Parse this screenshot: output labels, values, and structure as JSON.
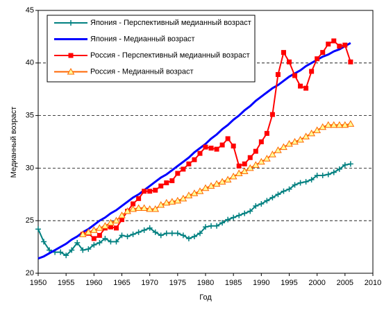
{
  "chart_data": {
    "type": "line",
    "x_label": "Год",
    "y_label": "Медианный возраст",
    "xlim": [
      1950,
      2010
    ],
    "xticks": [
      1950,
      1955,
      1960,
      1965,
      1970,
      1975,
      1980,
      1985,
      1990,
      1995,
      2000,
      2005,
      2010
    ],
    "ylim": [
      20,
      45
    ],
    "yticks": [
      20,
      25,
      30,
      35,
      40,
      45
    ],
    "grid": true,
    "legend": "top-left",
    "x": [
      1950,
      1951,
      1952,
      1953,
      1954,
      1955,
      1956,
      1957,
      1958,
      1959,
      1960,
      1961,
      1962,
      1963,
      1964,
      1965,
      1966,
      1967,
      1968,
      1969,
      1970,
      1971,
      1972,
      1973,
      1974,
      1975,
      1976,
      1977,
      1978,
      1979,
      1980,
      1981,
      1982,
      1983,
      1984,
      1985,
      1986,
      1987,
      1988,
      1989,
      1990,
      1991,
      1992,
      1993,
      1994,
      1995,
      1996,
      1997,
      1998,
      1999,
      2000,
      2001,
      2002,
      2003,
      2004,
      2005,
      2006
    ],
    "series": [
      {
        "name": "Япония - Перспективный медианный возраст",
        "color": "#008080",
        "marker": "plus",
        "values": [
          24.2,
          23.0,
          22.2,
          22.0,
          22.0,
          21.7,
          22.2,
          22.9,
          22.2,
          22.3,
          22.7,
          22.9,
          23.3,
          23.0,
          23.0,
          23.6,
          23.5,
          23.7,
          23.9,
          24.1,
          24.3,
          23.9,
          23.6,
          23.8,
          23.8,
          23.8,
          23.6,
          23.3,
          23.5,
          23.8,
          24.4,
          24.5,
          24.5,
          24.8,
          25.1,
          25.3,
          25.5,
          25.7,
          25.9,
          26.4,
          26.6,
          26.9,
          27.2,
          27.5,
          27.8,
          28.0,
          28.4,
          28.6,
          28.7,
          28.9,
          29.3,
          29.3,
          29.4,
          29.6,
          29.9,
          30.3,
          30.4
        ]
      },
      {
        "name": "Япония - Медианный возраст",
        "color": "#0000ff",
        "marker": "none",
        "values": [
          21.4,
          21.6,
          21.9,
          22.2,
          22.5,
          22.8,
          23.2,
          23.5,
          23.9,
          24.2,
          24.6,
          25.0,
          25.3,
          25.7,
          26.0,
          26.4,
          26.8,
          27.2,
          27.5,
          27.9,
          28.3,
          28.7,
          29.1,
          29.4,
          29.8,
          30.2,
          30.6,
          31.0,
          31.5,
          31.9,
          32.3,
          32.8,
          33.2,
          33.7,
          34.1,
          34.6,
          35.0,
          35.5,
          35.9,
          36.4,
          36.8,
          37.2,
          37.6,
          37.9,
          38.3,
          38.7,
          39.0,
          39.3,
          39.7,
          40.0,
          40.3,
          40.6,
          40.8,
          41.1,
          41.3,
          41.6,
          41.9
        ]
      },
      {
        "name": "Россия - Перспективный медианный возраст",
        "color": "#ff0000",
        "marker": "square",
        "values": [
          null,
          null,
          null,
          null,
          null,
          null,
          null,
          null,
          23.7,
          23.8,
          23.3,
          23.6,
          24.3,
          24.4,
          24.3,
          25.1,
          25.9,
          26.6,
          27.1,
          27.8,
          27.8,
          27.9,
          28.3,
          28.6,
          28.8,
          29.5,
          29.9,
          30.4,
          30.8,
          31.4,
          32.0,
          31.9,
          31.8,
          32.2,
          32.8,
          32.1,
          30.2,
          30.4,
          31.0,
          31.6,
          32.5,
          33.3,
          35.1,
          38.9,
          41.0,
          40.1,
          38.8,
          37.8,
          37.6,
          39.2,
          40.4,
          41.0,
          41.8,
          42.1,
          41.6,
          41.7,
          40.1
        ]
      },
      {
        "name": "Россия - Медианный возраст",
        "color": "#ff6600",
        "marker": "triangle",
        "values": [
          null,
          null,
          null,
          null,
          null,
          null,
          null,
          null,
          23.7,
          23.9,
          24.1,
          24.3,
          24.5,
          24.8,
          25.0,
          25.5,
          25.9,
          26.1,
          26.2,
          26.2,
          26.1,
          26.1,
          26.5,
          26.7,
          26.8,
          26.9,
          27.1,
          27.4,
          27.6,
          27.8,
          28.1,
          28.3,
          28.5,
          28.7,
          28.9,
          29.2,
          29.5,
          29.7,
          30.0,
          30.3,
          30.6,
          30.9,
          31.3,
          31.7,
          32.0,
          32.3,
          32.5,
          32.7,
          33.0,
          33.3,
          33.6,
          33.9,
          34.1,
          34.1,
          34.1,
          34.1,
          34.2
        ]
      }
    ]
  }
}
